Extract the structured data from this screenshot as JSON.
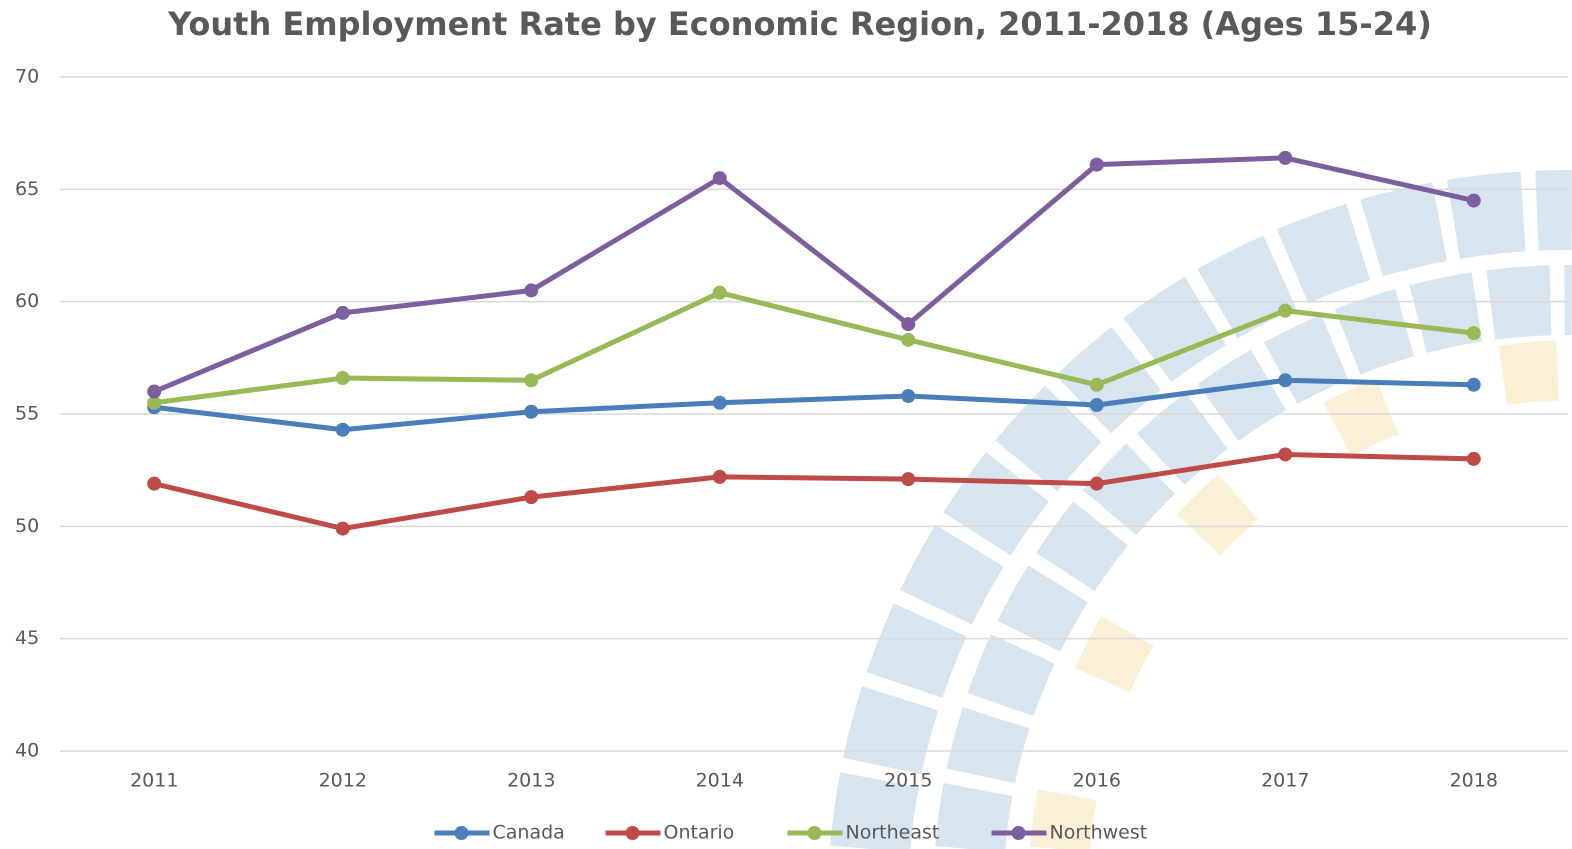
{
  "chart_data": {
    "type": "line",
    "title": "Youth Employment Rate by Economic Region, 2011-2018 (Ages 15-24)",
    "categories": [
      "2011",
      "2012",
      "2013",
      "2014",
      "2015",
      "2016",
      "2017",
      "2018"
    ],
    "series": [
      {
        "name": "Canada",
        "color": "#4a7ebb",
        "values": [
          55.3,
          54.3,
          55.1,
          55.5,
          55.8,
          55.4,
          56.5,
          56.3
        ]
      },
      {
        "name": "Ontario",
        "color": "#be4b48",
        "values": [
          51.9,
          49.9,
          51.3,
          52.2,
          52.1,
          51.9,
          53.2,
          53.0
        ]
      },
      {
        "name": "Northeast",
        "color": "#98b954",
        "values": [
          55.5,
          56.6,
          56.5,
          60.4,
          58.3,
          56.3,
          59.6,
          58.6
        ]
      },
      {
        "name": "Northwest",
        "color": "#7d5fa0",
        "values": [
          56.0,
          59.5,
          60.5,
          65.5,
          59.0,
          66.1,
          66.4,
          64.5
        ]
      }
    ],
    "ylim": [
      40,
      70
    ],
    "yticks": [
      40,
      45,
      50,
      55,
      60,
      65,
      70
    ],
    "grid": true,
    "legend": "bottom"
  }
}
